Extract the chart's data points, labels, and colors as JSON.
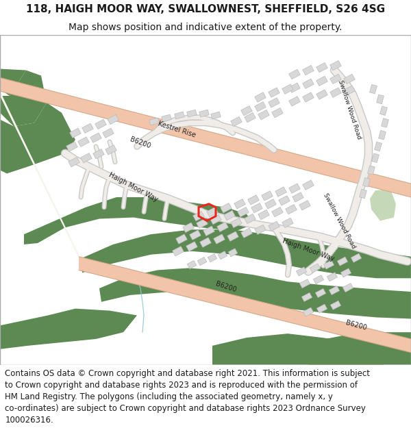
{
  "title_line1": "118, HAIGH MOOR WAY, SWALLOWNEST, SHEFFIELD, S26 4SG",
  "title_line2": "Map shows position and indicative extent of the property.",
  "footer_lines": [
    "Contains OS data © Crown copyright and database right 2021. This information is subject",
    "to Crown copyright and database rights 2023 and is reproduced with the permission of",
    "HM Land Registry. The polygons (including the associated geometry, namely x, y",
    "co-ordinates) are subject to Crown copyright and database rights 2023 Ordnance Survey",
    "100026316."
  ],
  "bg_color": "#ffffff",
  "map_bg": "#f7f4ef",
  "green": "#5c8a52",
  "light_green": "#c5d9b8",
  "road_pink": "#f2c5aa",
  "road_white": "#f0ede8",
  "road_edge": "#c8c8c8",
  "bld_fill": "#d8d8d8",
  "bld_edge": "#bbbbbb",
  "red": "#e8281e",
  "text_dark": "#1a1a1a",
  "water": "#cce8f0",
  "title_fs": 11,
  "sub_fs": 10,
  "footer_fs": 8.5,
  "label_fs": 7.0
}
